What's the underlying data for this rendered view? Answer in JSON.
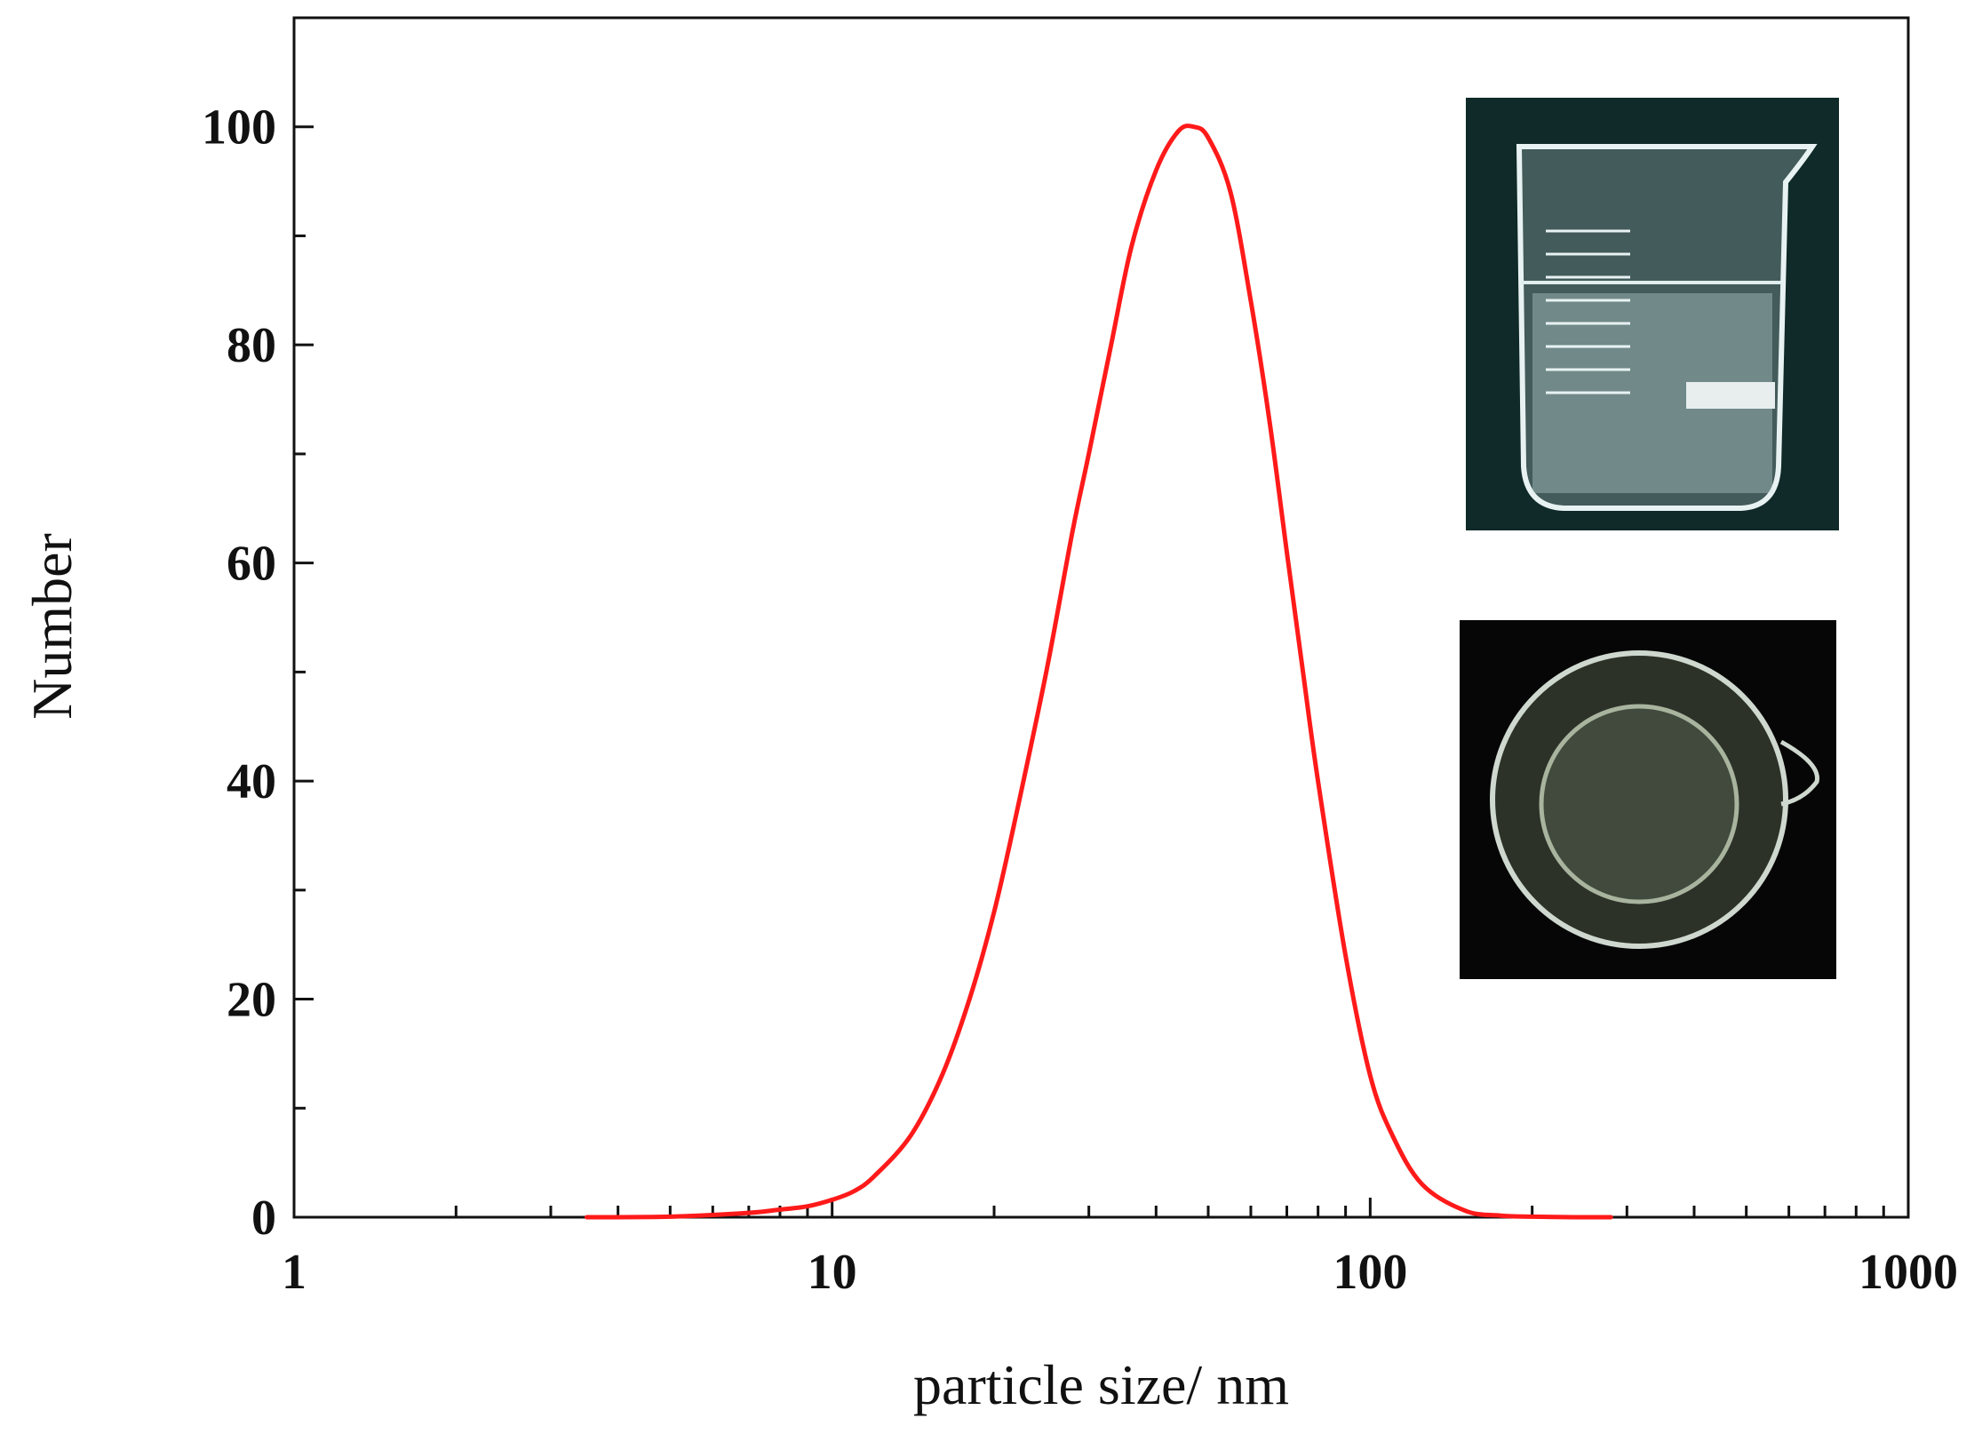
{
  "chart_data": {
    "type": "line",
    "title": "",
    "xlabel": "particle size/ nm",
    "ylabel": "Number",
    "x_scale": "log",
    "xlim": [
      1,
      1000
    ],
    "ylim": [
      0,
      110
    ],
    "x_ticks": [
      1,
      10,
      100,
      1000
    ],
    "x_tick_labels": [
      "1",
      "10",
      "100",
      "1000"
    ],
    "y_ticks": [
      0,
      20,
      40,
      60,
      80,
      100
    ],
    "y_tick_labels": [
      "0",
      "20",
      "40",
      "60",
      "80",
      "100"
    ],
    "grid": false,
    "legend": "none",
    "series": [
      {
        "color": "#ff1a1a",
        "x": [
          3.5,
          5,
          7,
          8,
          9,
          10,
          11,
          12,
          14,
          16,
          18,
          20,
          22,
          25,
          28,
          30,
          33,
          36,
          40,
          44,
          47,
          50,
          55,
          60,
          65,
          70,
          75,
          80,
          90,
          100,
          110,
          125,
          150,
          175,
          200,
          240,
          280
        ],
        "y": [
          0,
          0.05,
          0.4,
          0.7,
          1,
          1.6,
          2.4,
          3.8,
          7.5,
          13,
          20,
          28,
          37,
          50,
          63,
          70,
          80,
          89,
          96,
          99.6,
          100,
          99,
          94,
          84,
          73,
          61,
          50,
          40,
          24,
          13,
          7.5,
          3,
          0.6,
          0.15,
          0.05,
          0,
          0
        ]
      }
    ],
    "insets": [
      {
        "description-free": true,
        "color": "#0f2a28",
        "name": "beaker-side-photo"
      },
      {
        "description-free": true,
        "color": "#060606",
        "name": "beaker-top-photo"
      }
    ]
  }
}
